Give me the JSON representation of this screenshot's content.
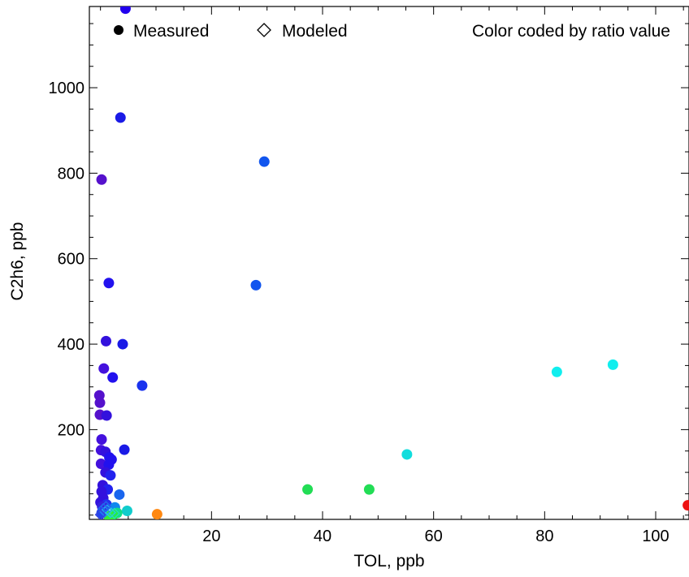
{
  "chart_data": {
    "type": "scatter",
    "title": "",
    "xlabel": "TOL, ppb",
    "ylabel": "C2h6, ppb",
    "xlim": [
      -2,
      106
    ],
    "ylim": [
      -10,
      1190
    ],
    "xticks": [
      20,
      40,
      60,
      80,
      100
    ],
    "yticks": [
      200,
      400,
      600,
      800,
      1000
    ],
    "grid": false,
    "legend": {
      "placement": "top",
      "entries": [
        {
          "label": "Measured",
          "marker": "filled-circle"
        },
        {
          "label": "Modeled",
          "marker": "open-diamond"
        }
      ],
      "note": "Color coded by ratio value"
    },
    "series": [
      {
        "name": "Measured",
        "marker": "filled-circle",
        "points": [
          {
            "x": 4.5,
            "y": 1185,
            "color": "#2200ee"
          },
          {
            "x": 3.6,
            "y": 930,
            "color": "#1a1ae6"
          },
          {
            "x": 29.5,
            "y": 827,
            "color": "#1155ee"
          },
          {
            "x": 0.2,
            "y": 785,
            "color": "#5511cc"
          },
          {
            "x": 1.5,
            "y": 543,
            "color": "#2211ee"
          },
          {
            "x": 28.0,
            "y": 538,
            "color": "#1155ee"
          },
          {
            "x": 1.0,
            "y": 407,
            "color": "#3311dd"
          },
          {
            "x": 4.0,
            "y": 400,
            "color": "#1a1ae6"
          },
          {
            "x": 0.6,
            "y": 343,
            "color": "#4411dd"
          },
          {
            "x": 2.2,
            "y": 322,
            "color": "#2211ee"
          },
          {
            "x": 82.2,
            "y": 335,
            "color": "#11eeee"
          },
          {
            "x": 92.3,
            "y": 352,
            "color": "#11eeee"
          },
          {
            "x": 7.5,
            "y": 303,
            "color": "#1a33ee"
          },
          {
            "x": -0.2,
            "y": 280,
            "color": "#5511cc"
          },
          {
            "x": -0.1,
            "y": 263,
            "color": "#5511cc"
          },
          {
            "x": -0.1,
            "y": 235,
            "color": "#5511cc"
          },
          {
            "x": 1.1,
            "y": 233,
            "color": "#3311dd"
          },
          {
            "x": 0.2,
            "y": 177,
            "color": "#4411dd"
          },
          {
            "x": 0.1,
            "y": 152,
            "color": "#4411dd"
          },
          {
            "x": 0.9,
            "y": 148,
            "color": "#3311dd"
          },
          {
            "x": 4.3,
            "y": 153,
            "color": "#1a1ae6"
          },
          {
            "x": 55.2,
            "y": 142,
            "color": "#11dddd"
          },
          {
            "x": 1.6,
            "y": 135,
            "color": "#2211ee"
          },
          {
            "x": 2.0,
            "y": 130,
            "color": "#2211ee"
          },
          {
            "x": 0.1,
            "y": 120,
            "color": "#4411dd"
          },
          {
            "x": 1.5,
            "y": 118,
            "color": "#2211ee"
          },
          {
            "x": 0.9,
            "y": 100,
            "color": "#3311dd"
          },
          {
            "x": 1.8,
            "y": 93,
            "color": "#2222ee"
          },
          {
            "x": 0.4,
            "y": 70,
            "color": "#3311dd"
          },
          {
            "x": 1.3,
            "y": 60,
            "color": "#2222ee"
          },
          {
            "x": 0.2,
            "y": 55,
            "color": "#3311dd"
          },
          {
            "x": 3.4,
            "y": 48,
            "color": "#1a66ee"
          },
          {
            "x": 37.3,
            "y": 60,
            "color": "#22dd55"
          },
          {
            "x": 48.4,
            "y": 60,
            "color": "#22dd55"
          },
          {
            "x": 0.5,
            "y": 40,
            "color": "#3311dd"
          },
          {
            "x": 0.0,
            "y": 30,
            "color": "#3311dd"
          },
          {
            "x": 1.1,
            "y": 25,
            "color": "#2233ee"
          },
          {
            "x": 2.6,
            "y": 18,
            "color": "#1188ee"
          },
          {
            "x": 0.3,
            "y": 20,
            "color": "#3322dd"
          },
          {
            "x": 4.8,
            "y": 10,
            "color": "#11cccc"
          },
          {
            "x": 3.0,
            "y": 5,
            "color": "#11dd88"
          },
          {
            "x": 2.3,
            "y": 1,
            "color": "#22ee44"
          },
          {
            "x": 1.5,
            "y": -2,
            "color": "#33ee33"
          },
          {
            "x": 0.2,
            "y": 5,
            "color": "#2244ee"
          },
          {
            "x": 10.2,
            "y": 2,
            "color": "#ff8811"
          },
          {
            "x": 105.8,
            "y": 23,
            "color": "#ee1111"
          }
        ]
      },
      {
        "name": "Modeled",
        "marker": "open-diamond",
        "points": [
          {
            "x": 0.3,
            "y": 3,
            "color": "#2244ee"
          },
          {
            "x": 0.8,
            "y": 8,
            "color": "#2288ee"
          },
          {
            "x": 1.2,
            "y": 12,
            "color": "#22aaee"
          },
          {
            "x": 0.5,
            "y": 15,
            "color": "#2266ee"
          },
          {
            "x": 1.8,
            "y": 6,
            "color": "#22ccdd"
          },
          {
            "x": 0.0,
            "y": 1,
            "color": "#3344dd"
          },
          {
            "x": 2.5,
            "y": 4,
            "color": "#22ddbb"
          },
          {
            "x": 1.0,
            "y": 20,
            "color": "#2266ee"
          }
        ]
      }
    ]
  }
}
